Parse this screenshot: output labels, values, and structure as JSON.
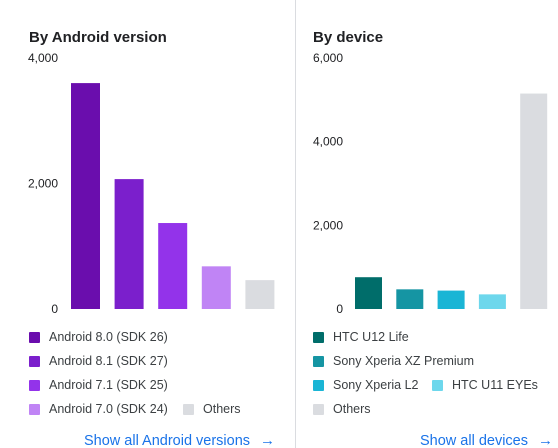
{
  "android_card": {
    "title": "By Android version",
    "link_label": "Show all Android versions",
    "link_icon": "arrow-right-icon"
  },
  "device_card": {
    "title": "By device",
    "link_label": "Show all devices",
    "link_icon": "arrow-right-icon"
  },
  "chart_data": [
    {
      "type": "bar",
      "title": "By Android version",
      "categories": [
        "Android 8.0 (SDK 26)",
        "Android 8.1 (SDK 27)",
        "Android 7.1 (SDK 25)",
        "Android 7.0 (SDK 24)",
        "Others"
      ],
      "values": [
        3600,
        2070,
        1370,
        680,
        460
      ],
      "colors": [
        "#6a0dad",
        "#7b1fcc",
        "#9333ea",
        "#c084f5",
        "#dadce0"
      ],
      "yticks": [
        "0",
        "2,000",
        "4,000"
      ],
      "ylim": [
        0,
        4000
      ],
      "grid": false,
      "legend_position": "bottom"
    },
    {
      "type": "bar",
      "title": "By device",
      "categories": [
        "HTC U12 Life",
        "Sony Xperia XZ Premium",
        "Sony Xperia L2",
        "HTC U11 EYEs",
        "Others"
      ],
      "values": [
        760,
        470,
        440,
        350,
        5150
      ],
      "colors": [
        "#006d6a",
        "#1595a3",
        "#1ab5d5",
        "#6dd7ec",
        "#dadce0"
      ],
      "yticks": [
        "0",
        "2,000",
        "4,000",
        "6,000"
      ],
      "ylim": [
        0,
        6000
      ],
      "grid": false,
      "legend_position": "bottom"
    }
  ]
}
